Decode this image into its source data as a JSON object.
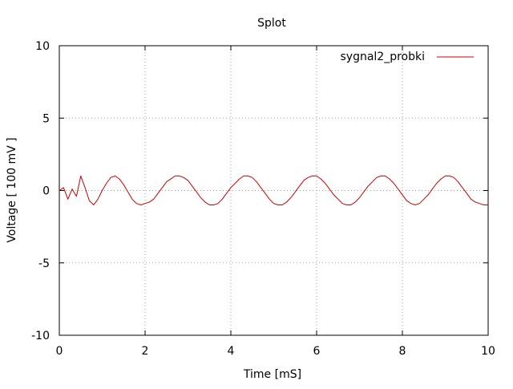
{
  "chart_data": {
    "type": "line",
    "title": "Splot",
    "xlabel": "Time [mS]",
    "ylabel": "Voltage [ 100 mV ]",
    "xlim": [
      0,
      10
    ],
    "ylim": [
      -10,
      10
    ],
    "x_ticks": [
      "0",
      "2",
      "4",
      "6",
      "8",
      "10"
    ],
    "y_ticks": [
      "10",
      "5",
      "0",
      "-5",
      "-10"
    ],
    "grid": true,
    "legend_position": "top-right",
    "series": [
      {
        "name": "sygnal2_probki",
        "color": "#cc0000",
        "x": [
          0.0,
          0.1,
          0.2,
          0.3,
          0.4,
          0.5,
          0.6,
          0.7,
          0.8,
          0.9,
          1.0,
          1.1,
          1.2,
          1.3,
          1.4,
          1.5,
          1.6,
          1.7,
          1.8,
          1.9,
          2.0,
          2.1,
          2.2,
          2.3,
          2.4,
          2.5,
          2.6,
          2.7,
          2.8,
          2.9,
          3.0,
          3.1,
          3.2,
          3.3,
          3.4,
          3.5,
          3.6,
          3.7,
          3.8,
          3.9,
          4.0,
          4.1,
          4.2,
          4.3,
          4.4,
          4.5,
          4.6,
          4.7,
          4.8,
          4.9,
          5.0,
          5.1,
          5.2,
          5.3,
          5.4,
          5.5,
          5.6,
          5.7,
          5.8,
          5.9,
          6.0,
          6.1,
          6.2,
          6.3,
          6.4,
          6.5,
          6.6,
          6.7,
          6.8,
          6.9,
          7.0,
          7.1,
          7.2,
          7.3,
          7.4,
          7.5,
          7.6,
          7.7,
          7.8,
          7.9,
          8.0,
          8.1,
          8.2,
          8.3,
          8.4,
          8.5,
          8.6,
          8.7,
          8.8,
          8.9,
          9.0,
          9.1,
          9.2,
          9.3,
          9.4,
          9.5,
          9.6,
          9.7,
          9.8,
          9.9,
          10.0
        ],
        "y": [
          0.0,
          0.2,
          -0.6,
          0.1,
          -0.4,
          1.0,
          0.2,
          -0.7,
          -1.0,
          -0.6,
          0.0,
          0.5,
          0.9,
          1.0,
          0.8,
          0.4,
          -0.1,
          -0.6,
          -0.9,
          -1.0,
          -0.9,
          -0.8,
          -0.6,
          -0.2,
          0.2,
          0.6,
          0.8,
          1.0,
          1.0,
          0.9,
          0.7,
          0.3,
          -0.1,
          -0.5,
          -0.8,
          -1.0,
          -1.0,
          -0.9,
          -0.6,
          -0.2,
          0.2,
          0.5,
          0.8,
          1.0,
          1.0,
          0.9,
          0.6,
          0.2,
          -0.2,
          -0.6,
          -0.9,
          -1.0,
          -1.0,
          -0.8,
          -0.5,
          -0.1,
          0.3,
          0.7,
          0.9,
          1.0,
          1.0,
          0.8,
          0.5,
          0.1,
          -0.3,
          -0.6,
          -0.9,
          -1.0,
          -1.0,
          -0.8,
          -0.5,
          -0.1,
          0.3,
          0.6,
          0.9,
          1.0,
          1.0,
          0.8,
          0.5,
          0.1,
          -0.3,
          -0.7,
          -0.9,
          -1.0,
          -0.9,
          -0.6,
          -0.3,
          0.1,
          0.5,
          0.8,
          1.0,
          1.0,
          0.9,
          0.6,
          0.2,
          -0.2,
          -0.6,
          -0.8,
          -0.9,
          -1.0,
          -1.0
        ]
      }
    ]
  }
}
